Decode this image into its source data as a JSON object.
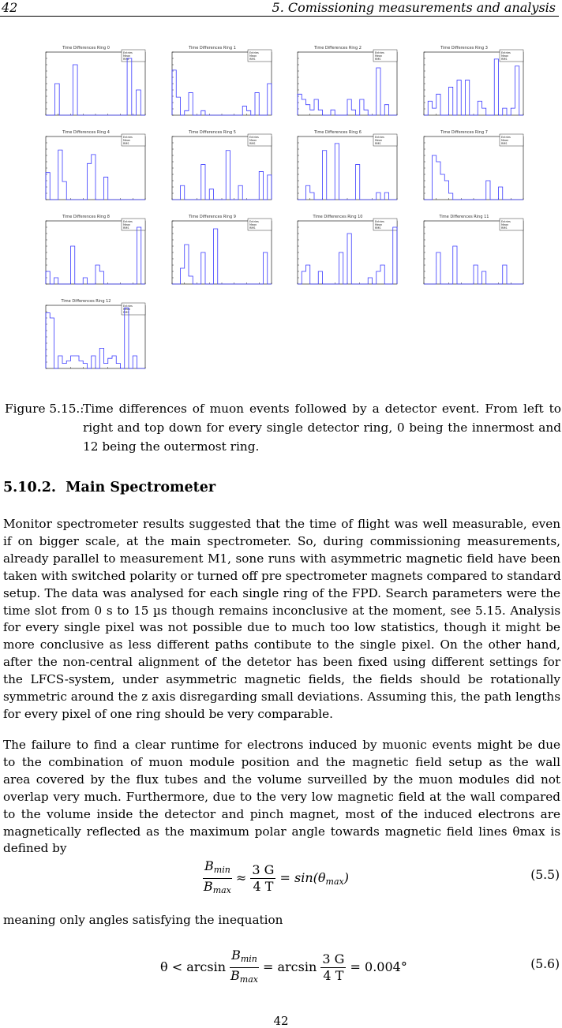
{
  "header": {
    "page_number": "42",
    "chapter_title": "5. Comissioning measurements and analysis"
  },
  "chart_data": [
    {
      "type": "bar",
      "title": "Time Differences Ring 0",
      "stats": [
        "Entries",
        "Mean",
        "RMS"
      ],
      "values": [
        0,
        0,
        5,
        0,
        0,
        0,
        8,
        0,
        0,
        0,
        0,
        0,
        0,
        0,
        0,
        0,
        0,
        0,
        9,
        0,
        4,
        0
      ],
      "ylim": [
        0,
        10
      ]
    },
    {
      "type": "bar",
      "title": "Time Differences Ring 1",
      "stats": [
        "Entries",
        "Mean",
        "RMS"
      ],
      "values": [
        10,
        4,
        0,
        1,
        5,
        0,
        0,
        1,
        0,
        0,
        0,
        0,
        0,
        0,
        0,
        0,
        0,
        2,
        1,
        0,
        5,
        0,
        0,
        7
      ],
      "ylim": [
        0,
        14
      ]
    },
    {
      "type": "bar",
      "title": "Time Differences Ring 2",
      "stats": [
        "Entries",
        "Mean",
        "RMS"
      ],
      "values": [
        4,
        3,
        2,
        1,
        3,
        1,
        0,
        0,
        1,
        0,
        0,
        0,
        3,
        1,
        0,
        3,
        1,
        0,
        0,
        9,
        0,
        2,
        0,
        0
      ],
      "ylim": [
        0,
        12
      ]
    },
    {
      "type": "bar",
      "title": "Time Differences Ring 3",
      "stats": [
        "Entries",
        "Mean",
        "RMS"
      ],
      "values": [
        0,
        2,
        1,
        3,
        0,
        0,
        4,
        0,
        5,
        0,
        5,
        0,
        0,
        2,
        1,
        0,
        0,
        8,
        0,
        1,
        0,
        1,
        7,
        0
      ],
      "ylim": [
        0,
        9
      ]
    },
    {
      "type": "bar",
      "title": "Time Differences Ring 4",
      "stats": [
        "Entries",
        "Mean",
        "RMS"
      ],
      "values": [
        6,
        0,
        0,
        11,
        4,
        0,
        0,
        0,
        0,
        0,
        8,
        10,
        0,
        0,
        5,
        0,
        0,
        0,
        0,
        0,
        0,
        0,
        0,
        0
      ],
      "ylim": [
        0,
        14
      ]
    },
    {
      "type": "bar",
      "title": "Time Differences Ring 5",
      "stats": [
        "Entries",
        "Mean",
        "RMS"
      ],
      "values": [
        0,
        0,
        4,
        0,
        0,
        0,
        0,
        10,
        0,
        3,
        0,
        0,
        0,
        14,
        0,
        0,
        4,
        0,
        0,
        0,
        0,
        8,
        0,
        7
      ],
      "ylim": [
        0,
        18
      ]
    },
    {
      "type": "bar",
      "title": "Time Differences Ring 6",
      "stats": [
        "Entries",
        "Mean",
        "RMS"
      ],
      "values": [
        0,
        0,
        2,
        1,
        0,
        0,
        7,
        0,
        0,
        8,
        0,
        0,
        0,
        0,
        5,
        0,
        0,
        0,
        0,
        1,
        0,
        1,
        0,
        0
      ],
      "ylim": [
        0,
        9
      ]
    },
    {
      "type": "bar",
      "title": "Time Differences Ring 7",
      "stats": [
        "Entries",
        "Mean",
        "RMS"
      ],
      "values": [
        0,
        0,
        7,
        6,
        4,
        3,
        1,
        0,
        0,
        0,
        0,
        0,
        0,
        0,
        0,
        3,
        0,
        0,
        2,
        0,
        0,
        0,
        0,
        0
      ],
      "ylim": [
        0,
        10
      ]
    },
    {
      "type": "bar",
      "title": "Time Differences Ring 8",
      "stats": [
        "Entries",
        "Mean",
        "RMS"
      ],
      "values": [
        2,
        0,
        1,
        0,
        0,
        0,
        6,
        0,
        0,
        1,
        0,
        0,
        3,
        2,
        0,
        0,
        0,
        0,
        0,
        0,
        0,
        0,
        9,
        0
      ],
      "ylim": [
        0,
        10
      ]
    },
    {
      "type": "bar",
      "title": "Time Differences Ring 9",
      "stats": [
        "Entries",
        "Mean",
        "RMS"
      ],
      "values": [
        0,
        0,
        2,
        5,
        1,
        0,
        0,
        4,
        0,
        0,
        7,
        0,
        0,
        0,
        0,
        0,
        0,
        0,
        0,
        0,
        0,
        0,
        4,
        0
      ],
      "ylim": [
        0,
        8
      ]
    },
    {
      "type": "bar",
      "title": "Time Differences Ring 10",
      "stats": [
        "Entries",
        "Mean",
        "RMS"
      ],
      "values": [
        0,
        2,
        3,
        0,
        0,
        2,
        0,
        0,
        0,
        0,
        5,
        0,
        8,
        0,
        0,
        0,
        0,
        1,
        0,
        2,
        3,
        0,
        0,
        9
      ],
      "ylim": [
        0,
        10
      ]
    },
    {
      "type": "bar",
      "title": "Time Differences Ring 11",
      "stats": [
        "Entries",
        "Mean",
        "RMS"
      ],
      "values": [
        0,
        0,
        0,
        5,
        0,
        0,
        0,
        6,
        0,
        0,
        0,
        0,
        3,
        0,
        2,
        0,
        0,
        0,
        0,
        3,
        0,
        0,
        0,
        0
      ],
      "ylim": [
        0,
        10
      ]
    },
    {
      "type": "bar",
      "title": "Time Differences Ring 12",
      "stats": [
        "Entries",
        "Mean",
        "RMS"
      ],
      "values": [
        22,
        20,
        0,
        5,
        2,
        3,
        5,
        5,
        3,
        2,
        0,
        5,
        0,
        8,
        2,
        4,
        5,
        2,
        0,
        24,
        0,
        5,
        0,
        0
      ],
      "ylim": [
        0,
        25
      ]
    }
  ],
  "caption": {
    "label": "Figure 5.15.:",
    "lines": [
      "Time differences of muon events followed by a detector event. From left to",
      "right and top down for every single detector ring, 0 being the innermost and",
      "12 being the outermost ring."
    ]
  },
  "section": {
    "number": "5.10.2.",
    "title": "Main Spectrometer"
  },
  "paragraph1": [
    "Monitor spectrometer results suggested that the time of flight was well measurable, even",
    "if on bigger scale, at the main spectrometer. So, during commissioning measurements,",
    "already parallel to measurement M1, sone runs with asymmetric magnetic field have been",
    "taken with switched polarity or turned off pre spectrometer magnets compared to standard",
    "setup. The data was analysed for each single ring of the FPD. Search parameters were the",
    "time slot from 0 s to 15 µs though remains inconclusive at the moment, see 5.15. Analysis",
    "for every single pixel was not possible due to much too low statistics, though it might be",
    "more conclusive as less different paths contibute to the single pixel. On the other hand,",
    "after the non-central alignment of the detetor has been fixed using different settings for",
    "the LFCS-system, under asymmetric magnetic fields, the fields should be rotationally",
    "symmetric around the z axis disregarding small deviations. Assuming this, the path lengths",
    "for every pixel of one ring should be very comparable."
  ],
  "paragraph2": [
    "The failure to find a clear runtime for electrons induced by muonic events might be due",
    "to the combination of muon module position and the magnetic field setup as the wall",
    "area covered by the flux tubes and the volume surveilled by the muon modules did not",
    "overlap very much. Furthermore, due to the very low magnetic field at the wall compared",
    "to the volume inside the detector and pinch magnet, most of the induced electrons are",
    "magnetically reflected as the maximum polar angle towards magnetic field lines θmax is",
    "defined by"
  ],
  "equation_5_5": {
    "lhs_num": "B",
    "lhs_num_sub": "min",
    "lhs_den": "B",
    "lhs_den_sub": "max",
    "approx": "≈",
    "mid_num": "3 G",
    "mid_den": "4 T",
    "rhs": "= sin(θ",
    "rhs_sub": "max",
    "rhs_close": ")",
    "number": "(5.5)"
  },
  "between_text": "meaning only angles satisfying the inequation",
  "equation_5_6": {
    "lhs": "θ < arcsin",
    "frac_num": "B",
    "frac_num_sub": "min",
    "frac_den": "B",
    "frac_den_sub": "max",
    "mid": "= arcsin",
    "mid_num": "3 G",
    "mid_den": "4 T",
    "rhs": "= 0.004°",
    "number": "(5.6)"
  },
  "footer": {
    "page_number": "42"
  }
}
